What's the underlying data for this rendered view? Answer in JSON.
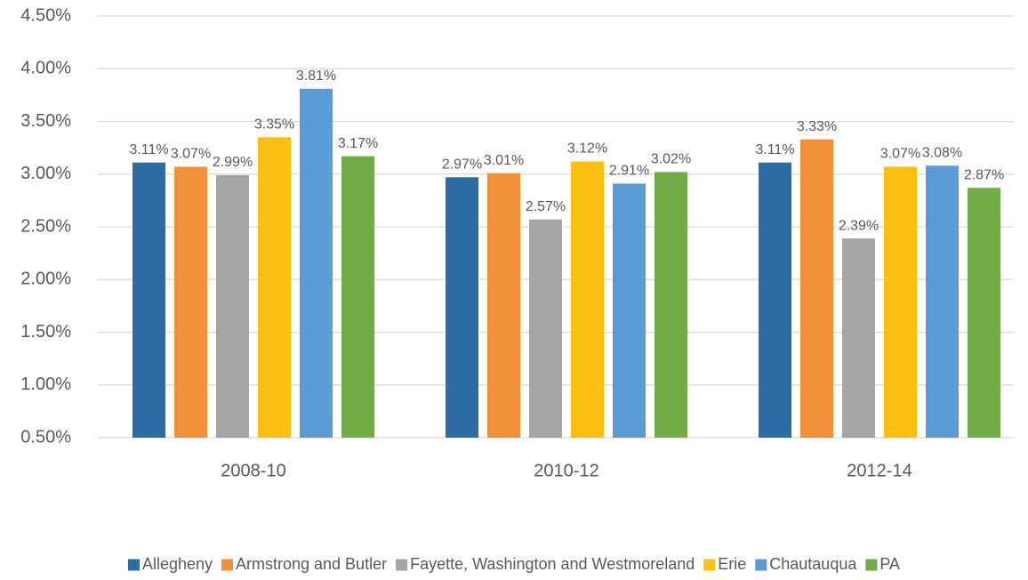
{
  "chart_data": {
    "type": "bar",
    "categories": [
      "2008-10",
      "2010-12",
      "2012-14"
    ],
    "series": [
      {
        "name": "Allegheny",
        "color": "#2e6ca4",
        "values": [
          3.11,
          2.97,
          3.11
        ],
        "value_labels": [
          "3.11%",
          "2.97%",
          "3.11%"
        ]
      },
      {
        "name": "Armstrong and Butler",
        "color": "#f0913a",
        "values": [
          3.07,
          3.01,
          3.33
        ],
        "value_labels": [
          "3.07%",
          "3.01%",
          "3.33%"
        ]
      },
      {
        "name": "Fayette, Washington and Westmoreland",
        "color": "#a5a5a8",
        "values": [
          2.99,
          2.57,
          2.39
        ],
        "value_labels": [
          "2.99%",
          "2.57%",
          "2.39%"
        ]
      },
      {
        "name": "Erie",
        "color": "#fdbf10",
        "values": [
          3.35,
          3.12,
          3.07
        ],
        "value_labels": [
          "3.35%",
          "3.12%",
          "3.07%"
        ]
      },
      {
        "name": "Chautauqua",
        "color": "#5b9bd5",
        "values": [
          3.81,
          2.91,
          3.08
        ],
        "value_labels": [
          "3.81%",
          "2.91%",
          "3.08%"
        ]
      },
      {
        "name": "PA",
        "color": "#70ad47",
        "values": [
          3.17,
          3.02,
          2.87
        ],
        "value_labels": [
          "3.17%",
          "3.02%",
          "2.87%"
        ]
      }
    ],
    "ylim": [
      0.5,
      4.5
    ],
    "yticks": [
      {
        "value": 0.5,
        "label": "0.50%"
      },
      {
        "value": 1.0,
        "label": "1.00%"
      },
      {
        "value": 1.5,
        "label": "1.50%"
      },
      {
        "value": 2.0,
        "label": "2.00%"
      },
      {
        "value": 2.5,
        "label": "2.50%"
      },
      {
        "value": 3.0,
        "label": "3.00%"
      },
      {
        "value": 3.5,
        "label": "3.50%"
      },
      {
        "value": 4.0,
        "label": "4.00%"
      },
      {
        "value": 4.5,
        "label": "4.50%"
      }
    ],
    "grid": true,
    "legend": "bottom"
  }
}
